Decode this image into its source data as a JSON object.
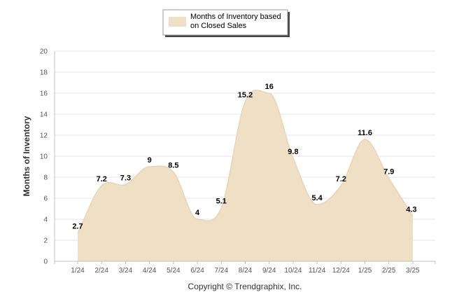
{
  "chart_data": {
    "type": "area",
    "categories": [
      "1/24",
      "2/24",
      "3/24",
      "4/24",
      "5/24",
      "6/24",
      "7/24",
      "8/24",
      "9/24",
      "10/24",
      "11/24",
      "12/24",
      "1/25",
      "2/25",
      "3/25"
    ],
    "series": [
      {
        "name": "Months of Inventory based on Closed Sales",
        "values": [
          2.7,
          7.2,
          7.3,
          9,
          8.5,
          4,
          5.1,
          15.2,
          16,
          9.8,
          5.4,
          7.2,
          11.6,
          7.9,
          4.3
        ]
      }
    ],
    "legend_lines": [
      "Months of Inventory based",
      "on Closed Sales"
    ],
    "ylabel": "Months of Inventory",
    "yticks": [
      0,
      2,
      4,
      6,
      8,
      10,
      12,
      14,
      16,
      18,
      20
    ],
    "ylim": [
      0,
      20
    ],
    "grid": true,
    "legend_position": "top-center",
    "footer": "Copyright © Trendgraphix, Inc.",
    "colors": {
      "fill": "#efdfc4",
      "stroke": "#e8d5b5",
      "grid": "#e6e6e6",
      "axis": "#c0c0c0"
    }
  }
}
